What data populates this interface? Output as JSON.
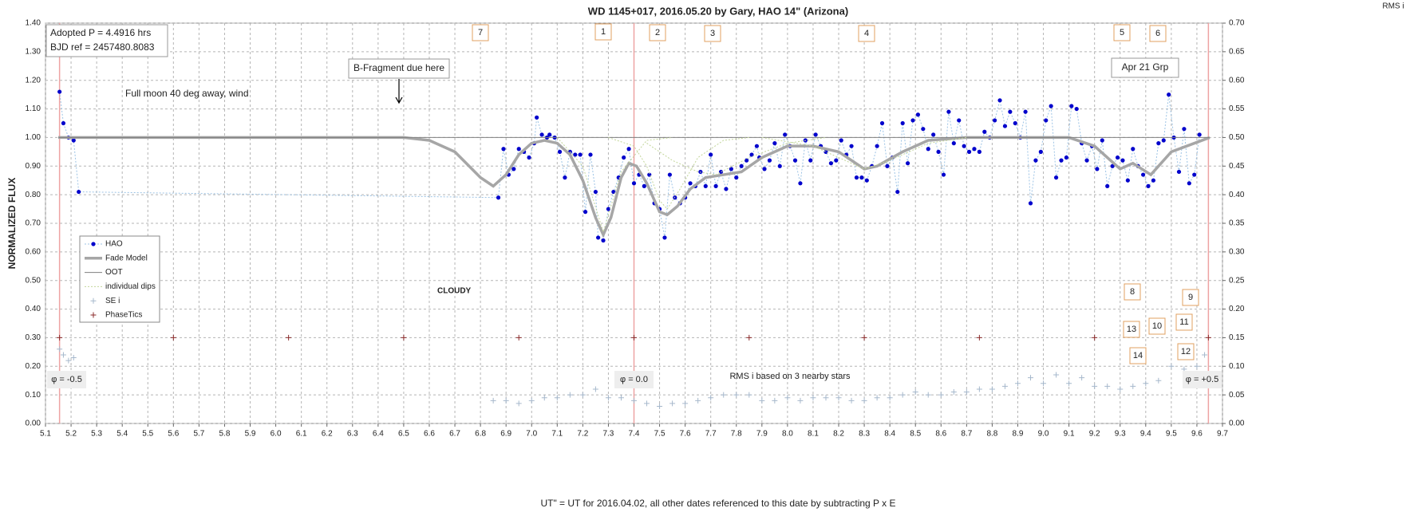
{
  "chart_data": {
    "type": "scatter",
    "title": "WD 1145+017,  2016.05.20  by Gary, HAO 14\" (Arizona)",
    "x_label": "UT\" = UT for 2016.04.02, all other dates referenced  to this date by subtracting P x E",
    "y_label": "NORMALIZED  FLUX",
    "y2_label": "RMS i",
    "xlim": [
      5.1,
      9.7
    ],
    "xticks": [
      5.1,
      5.2,
      5.3,
      5.4,
      5.5,
      5.6,
      5.7,
      5.8,
      5.9,
      {
        "value": 6.0,
        "label": "6.0"
      },
      6.1,
      6.2,
      6.3,
      6.4,
      6.5,
      6.6,
      6.7,
      6.8,
      6.9,
      {
        "value": 7.0,
        "label": "7.0"
      },
      7.1,
      7.2,
      7.3,
      7.4,
      7.5,
      7.6,
      7.7,
      7.8,
      7.9,
      {
        "value": 8.0,
        "label": "8.0"
      },
      8.1,
      8.2,
      8.3,
      8.4,
      8.5,
      8.6,
      8.7,
      8.8,
      8.9,
      {
        "value": 9.0,
        "label": "9.0"
      },
      9.1,
      9.2,
      9.3,
      9.4,
      9.5,
      9.6,
      9.7
    ],
    "ylim": [
      0,
      1.4
    ],
    "yticks": [
      {
        "value": 0,
        "label": "0.00"
      },
      {
        "value": 0.1,
        "label": "0.10"
      },
      {
        "value": 0.2,
        "label": "0.20"
      },
      {
        "value": 0.3,
        "label": "0.30"
      },
      {
        "value": 0.4,
        "label": "0.40"
      },
      {
        "value": 0.5,
        "label": "0.50"
      },
      {
        "value": 0.6,
        "label": "0.60"
      },
      {
        "value": 0.7,
        "label": "0.70"
      },
      {
        "value": 0.8,
        "label": "0.80"
      },
      {
        "value": 0.9,
        "label": "0.90"
      },
      {
        "value": 1.0,
        "label": "1.00"
      },
      {
        "value": 1.1,
        "label": "1.10"
      },
      {
        "value": 1.2,
        "label": "1.20"
      },
      {
        "value": 1.3,
        "label": "1.30"
      },
      {
        "value": 1.4,
        "label": "1.40"
      }
    ],
    "y2lim": [
      0,
      0.7
    ],
    "y2ticks": [
      {
        "value": 0,
        "label": "0.00"
      },
      {
        "value": 0.05,
        "label": "0.05"
      },
      {
        "value": 0.1,
        "label": "0.10"
      },
      {
        "value": 0.15,
        "label": "0.15"
      },
      {
        "value": 0.2,
        "label": "0.20"
      },
      {
        "value": 0.25,
        "label": "0.25"
      },
      {
        "value": 0.3,
        "label": "0.30"
      },
      {
        "value": 0.35,
        "label": "0.35"
      },
      {
        "value": 0.4,
        "label": "0.40"
      },
      {
        "value": 0.45,
        "label": "0.45"
      },
      {
        "value": 0.5,
        "label": "0.50"
      },
      {
        "value": 0.55,
        "label": "0.55"
      },
      {
        "value": 0.6,
        "label": "0.60"
      },
      {
        "value": 0.65,
        "label": "0.65"
      },
      {
        "value": 0.7,
        "label": "0.70"
      }
    ],
    "grid": true,
    "phase_lines": [
      5.155,
      7.4,
      9.645
    ],
    "phase_line_color": "#eea3a3",
    "series": [
      {
        "name": "HAO",
        "color": "#0000cc",
        "line_color": "#9cc3e5",
        "marker": "dot",
        "line": "dotted",
        "x": [
          5.155,
          5.17,
          5.19,
          5.21,
          5.23,
          6.87,
          6.89,
          6.91,
          6.93,
          6.95,
          6.97,
          6.99,
          7.01,
          7.02,
          7.04,
          7.06,
          7.07,
          7.09,
          7.11,
          7.13,
          7.15,
          7.17,
          7.19,
          7.21,
          7.23,
          7.25,
          7.26,
          7.28,
          7.3,
          7.32,
          7.34,
          7.36,
          7.38,
          7.4,
          7.42,
          7.44,
          7.46,
          7.48,
          7.5,
          7.52,
          7.54,
          7.56,
          7.58,
          7.6,
          7.62,
          7.64,
          7.66,
          7.68,
          7.7,
          7.72,
          7.74,
          7.76,
          7.78,
          7.8,
          7.82,
          7.84,
          7.86,
          7.88,
          7.89,
          7.91,
          7.93,
          7.95,
          7.97,
          7.99,
          8.01,
          8.03,
          8.05,
          8.07,
          8.09,
          8.11,
          8.13,
          8.15,
          8.17,
          8.19,
          8.21,
          8.23,
          8.25,
          8.27,
          8.29,
          8.31,
          8.33,
          8.35,
          8.37,
          8.39,
          8.41,
          8.43,
          8.45,
          8.47,
          8.49,
          8.51,
          8.53,
          8.55,
          8.57,
          8.59,
          8.61,
          8.63,
          8.65,
          8.67,
          8.69,
          8.71,
          8.73,
          8.75,
          8.77,
          8.79,
          8.81,
          8.83,
          8.85,
          8.87,
          8.89,
          8.91,
          8.93,
          8.95,
          8.97,
          8.99,
          9.01,
          9.03,
          9.05,
          9.07,
          9.09,
          9.11,
          9.13,
          9.15,
          9.17,
          9.19,
          9.21,
          9.23,
          9.25,
          9.27,
          9.29,
          9.31,
          9.33,
          9.35,
          9.37,
          9.39,
          9.41,
          9.43,
          9.45,
          9.47,
          9.49,
          9.51,
          9.53,
          9.55,
          9.57,
          9.59,
          9.61
        ],
        "values": [
          1.16,
          1.05,
          1.0,
          0.99,
          0.81,
          0.79,
          0.96,
          0.87,
          0.89,
          0.96,
          0.95,
          0.93,
          0.98,
          1.07,
          1.01,
          1.0,
          1.01,
          1.0,
          0.95,
          0.86,
          0.95,
          0.94,
          0.94,
          0.74,
          0.94,
          0.81,
          0.65,
          0.64,
          0.75,
          0.81,
          0.86,
          0.93,
          0.96,
          0.84,
          0.87,
          0.83,
          0.87,
          0.77,
          0.75,
          0.65,
          0.87,
          0.79,
          0.77,
          0.79,
          0.84,
          0.83,
          0.88,
          0.83,
          0.94,
          0.83,
          0.88,
          0.82,
          0.89,
          0.86,
          0.9,
          0.92,
          0.94,
          0.97,
          0.93,
          0.89,
          0.92,
          0.98,
          0.9,
          1.01,
          0.97,
          0.92,
          0.84,
          0.99,
          0.92,
          1.01,
          0.97,
          0.95,
          0.91,
          0.92,
          0.99,
          0.94,
          0.97,
          0.86,
          0.86,
          0.85,
          0.9,
          0.97,
          1.05,
          0.9,
          0.93,
          0.81,
          1.05,
          0.91,
          1.06,
          1.08,
          1.03,
          0.96,
          1.01,
          0.95,
          0.87,
          1.09,
          0.98,
          1.06,
          0.97,
          0.95,
          0.96,
          0.95,
          1.02,
          1.0,
          1.06,
          1.13,
          1.04,
          1.09,
          1.05,
          1.0,
          1.09,
          0.77,
          0.92,
          0.95,
          1.06,
          1.11,
          0.86,
          0.92,
          0.93,
          1.11,
          1.1,
          0.98,
          0.92,
          0.97,
          0.89,
          0.99,
          0.83,
          0.9,
          0.93,
          0.92,
          0.85,
          0.96,
          0.9,
          0.87,
          0.83,
          0.85,
          0.98,
          0.99,
          1.15,
          1.0,
          0.88,
          1.03,
          0.84,
          0.87,
          1.01
        ]
      },
      {
        "name": "Fade Model",
        "color": "#a6a6a6",
        "marker": null,
        "line": "thick",
        "x": [
          5.15,
          6.5,
          6.6,
          6.7,
          6.8,
          6.85,
          6.9,
          6.95,
          7.0,
          7.05,
          7.1,
          7.15,
          7.2,
          7.25,
          7.28,
          7.31,
          7.35,
          7.38,
          7.41,
          7.45,
          7.5,
          7.53,
          7.57,
          7.62,
          7.68,
          7.75,
          7.82,
          7.9,
          8.0,
          8.1,
          8.2,
          8.3,
          8.35,
          8.45,
          8.55,
          8.7,
          9.1,
          9.2,
          9.3,
          9.35,
          9.42,
          9.5,
          9.65
        ],
        "values": [
          1.0,
          1.0,
          0.99,
          0.95,
          0.86,
          0.83,
          0.87,
          0.94,
          0.98,
          0.99,
          0.98,
          0.94,
          0.85,
          0.72,
          0.66,
          0.72,
          0.86,
          0.91,
          0.9,
          0.84,
          0.74,
          0.73,
          0.76,
          0.82,
          0.86,
          0.87,
          0.88,
          0.93,
          0.97,
          0.97,
          0.95,
          0.89,
          0.9,
          0.95,
          0.99,
          1.0,
          1.0,
          0.97,
          0.89,
          0.91,
          0.87,
          0.95,
          1.0
        ]
      },
      {
        "name": "OOT",
        "color": "#7f7f7f",
        "marker": null,
        "line": "solid",
        "x": [
          5.15,
          9.65
        ],
        "values": [
          1.0,
          1.0
        ]
      },
      {
        "name": "individual dips",
        "color": "#c3d69b",
        "marker": null,
        "line": "dotted",
        "x": [
          7.1,
          7.2,
          7.28,
          7.35,
          7.45,
          7.55,
          null,
          7.3,
          7.4,
          7.45,
          7.5,
          7.53,
          7.58,
          7.65,
          7.75,
          7.85,
          null,
          7.45,
          7.55,
          7.65,
          7.72,
          7.85,
          8.0,
          8.15,
          null,
          7.9,
          8.1,
          8.25,
          8.3,
          8.4,
          8.55,
          8.7
        ],
        "values": [
          1.0,
          0.9,
          0.67,
          0.88,
          0.99,
          1.0,
          null,
          1.0,
          0.97,
          0.9,
          0.78,
          0.75,
          0.82,
          0.93,
          0.99,
          1.0,
          null,
          0.98,
          0.92,
          0.88,
          0.87,
          0.93,
          0.98,
          1.0,
          null,
          1.0,
          0.97,
          0.91,
          0.89,
          0.92,
          0.98,
          1.0
        ]
      },
      {
        "name": "SE i",
        "color": "#a6b8cc",
        "marker": "plus",
        "line": null,
        "axis": "y2",
        "x": [
          5.155,
          5.17,
          5.19,
          5.21,
          6.85,
          6.9,
          6.95,
          7.0,
          7.05,
          7.1,
          7.15,
          7.2,
          7.25,
          7.3,
          7.35,
          7.4,
          7.45,
          7.5,
          7.55,
          7.6,
          7.65,
          7.7,
          7.75,
          7.8,
          7.85,
          7.9,
          7.95,
          8.0,
          8.05,
          8.1,
          8.15,
          8.2,
          8.25,
          8.3,
          8.35,
          8.4,
          8.45,
          8.5,
          8.55,
          8.6,
          8.65,
          8.7,
          8.75,
          8.8,
          8.85,
          8.9,
          8.95,
          9.0,
          9.05,
          9.1,
          9.15,
          9.2,
          9.25,
          9.3,
          9.35,
          9.4,
          9.45,
          9.5,
          9.55,
          9.6,
          9.63
        ],
        "values": [
          0.13,
          0.12,
          0.11,
          0.115,
          0.04,
          0.04,
          0.035,
          0.04,
          0.045,
          0.045,
          0.05,
          0.05,
          0.06,
          0.045,
          0.045,
          0.04,
          0.035,
          0.03,
          0.035,
          0.035,
          0.04,
          0.045,
          0.05,
          0.05,
          0.05,
          0.04,
          0.04,
          0.045,
          0.04,
          0.045,
          0.045,
          0.045,
          0.04,
          0.04,
          0.045,
          0.045,
          0.05,
          0.055,
          0.05,
          0.05,
          0.055,
          0.055,
          0.06,
          0.06,
          0.065,
          0.07,
          0.08,
          0.07,
          0.085,
          0.07,
          0.08,
          0.065,
          0.065,
          0.06,
          0.065,
          0.07,
          0.075,
          0.1,
          0.095,
          0.1,
          0.12
        ]
      },
      {
        "name": "PhaseTics",
        "color": "#8b2a2a",
        "marker": "plus",
        "line": null,
        "x": [
          5.155,
          5.6,
          6.05,
          6.5,
          6.95,
          7.4,
          7.85,
          8.3,
          8.75,
          9.2,
          9.645
        ],
        "values": [
          0.3,
          0.3,
          0.3,
          0.3,
          0.3,
          0.3,
          0.3,
          0.3,
          0.3,
          0.3,
          0.3
        ]
      }
    ],
    "annotations": [
      "Adopted P = 4.4916 hrs",
      "BJD ref = 2457480.8083",
      "B-Fragment due here",
      "Full moon 40 deg away, wind",
      "CLOUDY",
      "RMS i based on 3 nearby stars",
      "φ = -0.5",
      "φ = 0.0",
      "φ = +0.5",
      "Apr 21 Grp"
    ],
    "dip_labels": [
      "7",
      "1",
      "2",
      "3",
      "4",
      "5",
      "6",
      "8",
      "9",
      "10",
      "11",
      "12",
      "13",
      "14"
    ]
  }
}
